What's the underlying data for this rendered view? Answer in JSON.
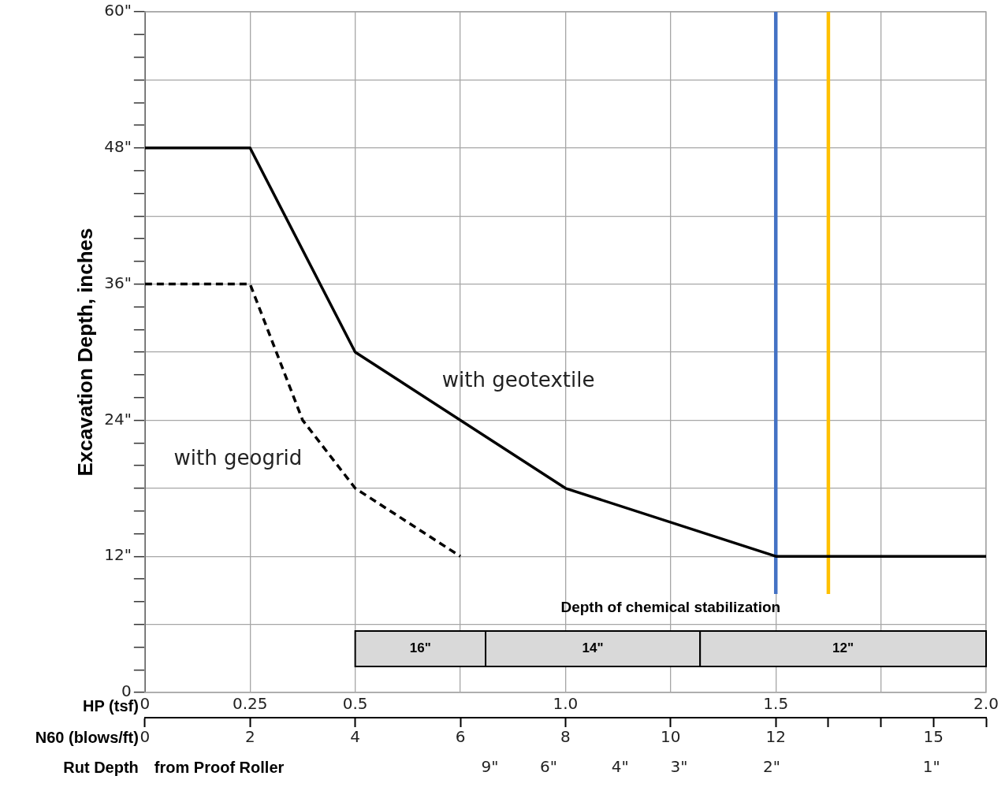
{
  "chart_data": {
    "type": "line",
    "ylabel": "Excavation Depth, inches",
    "xlabel": "HP (tsf)",
    "x2label": "N60 (blows/ft)",
    "series": [
      {
        "name": "with geotextile",
        "color": "#000000",
        "line_style": "solid",
        "x": [
          0,
          0.25,
          0.5,
          1.0,
          1.5,
          2.0
        ],
        "values": [
          48,
          48,
          30,
          18,
          12,
          12
        ]
      },
      {
        "name": "with geogrid",
        "color": "#000000",
        "line_style": "dashed",
        "x": [
          0,
          0.25,
          0.375,
          0.5,
          0.75
        ],
        "values": [
          36,
          36,
          24,
          18,
          12
        ]
      }
    ],
    "marker": "none",
    "grid": true,
    "legend": false,
    "xlim": [
      0,
      2
    ],
    "xticks": [
      0,
      0.25,
      0.5,
      {
        "value": 0.75,
        "label": null
      },
      {
        "value": 1,
        "label": "1.0"
      },
      {
        "value": 1.25,
        "label": null
      },
      {
        "value": 1.5,
        "label": "1.5"
      },
      {
        "value": 1.75,
        "label": null
      },
      {
        "value": 2,
        "label": "2.0"
      }
    ],
    "x2lim": [
      0,
      16
    ],
    "x2ticks": [
      0,
      2,
      4,
      6,
      8,
      10,
      12,
      {
        "value": 13,
        "label": null
      },
      {
        "value": 14,
        "label": null
      },
      15,
      {
        "value": 16,
        "label": null
      }
    ],
    "ylim": [
      0,
      60
    ],
    "yticks": [
      0,
      {
        "value": 2,
        "label": null
      },
      {
        "value": 4,
        "label": null
      },
      {
        "value": 6,
        "label": null
      },
      {
        "value": 8,
        "label": null
      },
      {
        "value": 10,
        "label": null
      },
      {
        "value": 12,
        "label": "12\""
      },
      {
        "value": 14,
        "label": null
      },
      {
        "value": 16,
        "label": null
      },
      {
        "value": 18,
        "label": null
      },
      {
        "value": 20,
        "label": null
      },
      {
        "value": 22,
        "label": null
      },
      {
        "value": 24,
        "label": "24\""
      },
      {
        "value": 26,
        "label": null
      },
      {
        "value": 28,
        "label": null
      },
      {
        "value": 30,
        "label": null
      },
      {
        "value": 32,
        "label": null
      },
      {
        "value": 34,
        "label": null
      },
      {
        "value": 36,
        "label": "36\""
      },
      {
        "value": 38,
        "label": null
      },
      {
        "value": 40,
        "label": null
      },
      {
        "value": 42,
        "label": null
      },
      {
        "value": 44,
        "label": null
      },
      {
        "value": 46,
        "label": null
      },
      {
        "value": 48,
        "label": "48\""
      },
      {
        "value": 50,
        "label": null
      },
      {
        "value": 52,
        "label": null
      },
      {
        "value": 54,
        "label": null
      },
      {
        "value": 56,
        "label": null
      },
      {
        "value": 58,
        "label": null
      },
      {
        "value": 60,
        "label": "60\""
      }
    ],
    "ref_lines": [
      {
        "axis": "x",
        "value": 1.5,
        "color": "#4472c4"
      },
      {
        "axis": "x",
        "value": 1.625,
        "color": "#ffc000"
      }
    ],
    "bands": [
      {
        "axis": "x",
        "from": 0.5,
        "to": 0.81,
        "label": "16\"",
        "color": "#d9d9d9"
      },
      {
        "axis": "x",
        "from": 0.81,
        "to": 1.32,
        "label": "14\"",
        "color": "#d9d9d9"
      },
      {
        "axis": "x",
        "from": 1.32,
        "to": 2.0,
        "label": "12\"",
        "color": "#d9d9d9"
      }
    ],
    "annotations": [
      "Depth of chemical stabilization",
      "Rut Depth",
      "from Proof Roller",
      "9\"",
      "6\"",
      "4\"",
      "3\"",
      "2\"",
      "1\""
    ]
  }
}
